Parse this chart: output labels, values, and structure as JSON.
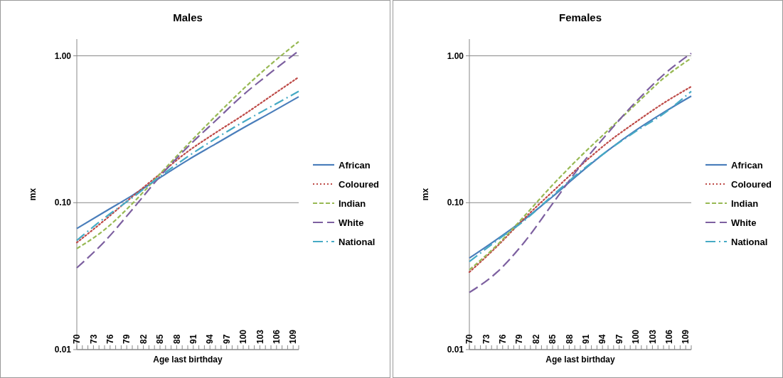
{
  "chart_data": [
    {
      "type": "line",
      "title": "Males",
      "xlabel": "Age last birthday",
      "ylabel": "mx",
      "log": "y",
      "grid": "y",
      "legend": "right",
      "xlim": [
        70,
        110
      ],
      "ylim": [
        0.01,
        1.3
      ],
      "xticks": [
        70,
        {
          "value": 71,
          "label": null
        },
        {
          "value": 72,
          "label": null
        },
        73,
        {
          "value": 74,
          "label": null
        },
        {
          "value": 75,
          "label": null
        },
        76,
        {
          "value": 77,
          "label": null
        },
        {
          "value": 78,
          "label": null
        },
        79,
        {
          "value": 80,
          "label": null
        },
        {
          "value": 81,
          "label": null
        },
        82,
        {
          "value": 83,
          "label": null
        },
        {
          "value": 84,
          "label": null
        },
        85,
        {
          "value": 86,
          "label": null
        },
        {
          "value": 87,
          "label": null
        },
        88,
        {
          "value": 89,
          "label": null
        },
        {
          "value": 90,
          "label": null
        },
        91,
        {
          "value": 92,
          "label": null
        },
        {
          "value": 93,
          "label": null
        },
        94,
        {
          "value": 95,
          "label": null
        },
        {
          "value": 96,
          "label": null
        },
        97,
        {
          "value": 98,
          "label": null
        },
        {
          "value": 99,
          "label": null
        },
        100,
        {
          "value": 101,
          "label": null
        },
        {
          "value": 102,
          "label": null
        },
        103,
        {
          "value": 104,
          "label": null
        },
        {
          "value": 105,
          "label": null
        },
        106,
        {
          "value": 107,
          "label": null
        },
        {
          "value": 108,
          "label": null
        },
        109,
        {
          "value": 110,
          "label": null
        }
      ],
      "yticks": [
        {
          "value": 0.01,
          "label": "0.01"
        },
        {
          "value": 0.1,
          "label": "0.10"
        },
        {
          "value": 1,
          "label": "1.00"
        }
      ],
      "x": [
        70,
        75,
        80,
        85,
        90,
        95,
        100,
        105,
        110
      ],
      "series": [
        {
          "name": "African",
          "color": "#4a7ebb",
          "line_style": "solid",
          "values": [
            0.0667,
            0.0865,
            0.112,
            0.148,
            0.195,
            0.251,
            0.323,
            0.411,
            0.526
          ]
        },
        {
          "name": "Coloured",
          "color": "#be4b48",
          "line_style": "dotted",
          "values": [
            0.0535,
            0.076,
            0.11,
            0.157,
            0.223,
            0.299,
            0.395,
            0.532,
            0.716
          ]
        },
        {
          "name": "Indian",
          "color": "#98b954",
          "line_style": "dashed",
          "values": [
            0.0487,
            0.0655,
            0.0985,
            0.157,
            0.249,
            0.388,
            0.594,
            0.877,
            1.25
          ]
        },
        {
          "name": "White",
          "color": "#7d60a0",
          "line_style": "longdash",
          "values": [
            0.036,
            0.0544,
            0.0898,
            0.151,
            0.24,
            0.361,
            0.542,
            0.771,
            1.08
          ]
        },
        {
          "name": "National",
          "color": "#46aac5",
          "line_style": "dashdot",
          "values": [
            0.0554,
            0.0788,
            0.108,
            0.151,
            0.206,
            0.273,
            0.354,
            0.451,
            0.573
          ]
        }
      ]
    },
    {
      "type": "line",
      "title": "Females",
      "xlabel": "Age last birthday",
      "ylabel": "mx",
      "log": "y",
      "grid": "y",
      "legend": "right",
      "xlim": [
        70,
        110
      ],
      "ylim": [
        0.01,
        1.3
      ],
      "xticks": [
        70,
        {
          "value": 71,
          "label": null
        },
        {
          "value": 72,
          "label": null
        },
        73,
        {
          "value": 74,
          "label": null
        },
        {
          "value": 75,
          "label": null
        },
        76,
        {
          "value": 77,
          "label": null
        },
        {
          "value": 78,
          "label": null
        },
        79,
        {
          "value": 80,
          "label": null
        },
        {
          "value": 81,
          "label": null
        },
        82,
        {
          "value": 83,
          "label": null
        },
        {
          "value": 84,
          "label": null
        },
        85,
        {
          "value": 86,
          "label": null
        },
        {
          "value": 87,
          "label": null
        },
        88,
        {
          "value": 89,
          "label": null
        },
        {
          "value": 90,
          "label": null
        },
        91,
        {
          "value": 92,
          "label": null
        },
        {
          "value": 93,
          "label": null
        },
        94,
        {
          "value": 95,
          "label": null
        },
        {
          "value": 96,
          "label": null
        },
        97,
        {
          "value": 98,
          "label": null
        },
        {
          "value": 99,
          "label": null
        },
        100,
        {
          "value": 101,
          "label": null
        },
        {
          "value": 102,
          "label": null
        },
        103,
        {
          "value": 104,
          "label": null
        },
        {
          "value": 105,
          "label": null
        },
        106,
        {
          "value": 107,
          "label": null
        },
        {
          "value": 108,
          "label": null
        },
        109,
        {
          "value": 110,
          "label": null
        }
      ],
      "yticks": [
        {
          "value": 0.01,
          "label": "0.01"
        },
        {
          "value": 0.1,
          "label": "0.10"
        },
        {
          "value": 1,
          "label": "1.00"
        }
      ],
      "x": [
        70,
        75,
        80,
        85,
        90,
        95,
        100,
        105,
        110
      ],
      "series": [
        {
          "name": "African",
          "color": "#4a7ebb",
          "line_style": "solid",
          "values": [
            0.042,
            0.0565,
            0.0774,
            0.11,
            0.16,
            0.227,
            0.311,
            0.411,
            0.532
          ]
        },
        {
          "name": "Coloured",
          "color": "#be4b48",
          "line_style": "dotted",
          "values": [
            0.0337,
            0.0505,
            0.0788,
            0.119,
            0.178,
            0.258,
            0.354,
            0.476,
            0.617
          ]
        },
        {
          "name": "Indian",
          "color": "#98b954",
          "line_style": "dashed",
          "values": [
            0.0349,
            0.0515,
            0.0818,
            0.132,
            0.206,
            0.311,
            0.468,
            0.703,
            0.964
          ]
        },
        {
          "name": "White",
          "color": "#7d60a0",
          "line_style": "longdash",
          "values": [
            0.0245,
            0.0337,
            0.0544,
            0.0985,
            0.178,
            0.299,
            0.485,
            0.743,
            1.04
          ]
        },
        {
          "name": "National",
          "color": "#46aac5",
          "line_style": "dashdot",
          "values": [
            0.0397,
            0.0554,
            0.076,
            0.112,
            0.163,
            0.227,
            0.306,
            0.403,
            0.573
          ]
        }
      ]
    }
  ]
}
